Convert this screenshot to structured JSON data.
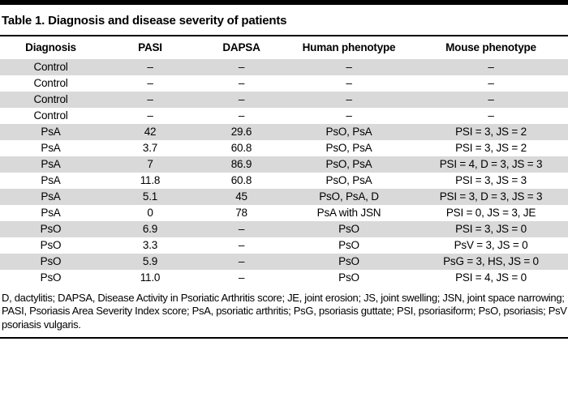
{
  "title": "Table 1. Diagnosis and disease severity of patients",
  "table": {
    "columns": [
      "Diagnosis",
      "PASI",
      "DAPSA",
      "Human phenotype",
      "Mouse phenotype"
    ],
    "rows": [
      [
        "Control",
        "–",
        "–",
        "–",
        "–"
      ],
      [
        "Control",
        "–",
        "–",
        "–",
        "–"
      ],
      [
        "Control",
        "–",
        "–",
        "–",
        "–"
      ],
      [
        "Control",
        "–",
        "–",
        "–",
        "–"
      ],
      [
        "PsA",
        "42",
        "29.6",
        "PsO, PsA",
        "PSI = 3, JS = 2"
      ],
      [
        "PsA",
        "3.7",
        "60.8",
        "PsO, PsA",
        "PSI = 3, JS = 2"
      ],
      [
        "PsA",
        "7",
        "86.9",
        "PsO, PsA",
        "PSI = 4, D = 3, JS = 3"
      ],
      [
        "PsA",
        "11.8",
        "60.8",
        "PsO, PsA",
        "PSI = 3, JS = 3"
      ],
      [
        "PsA",
        "5.1",
        "45",
        "PsO, PsA, D",
        "PSI = 3, D = 3, JS = 3"
      ],
      [
        "PsA",
        "0",
        "78",
        "PsA with JSN",
        "PSI = 0, JS = 3, JE"
      ],
      [
        "PsO",
        "6.9",
        "–",
        "PsO",
        "PSI = 3, JS = 0"
      ],
      [
        "PsO",
        "3.3",
        "–",
        "PsO",
        "PsV = 3, JS = 0"
      ],
      [
        "PsO",
        "5.9",
        "–",
        "PsO",
        "PsG = 3, HS, JS = 0"
      ],
      [
        "PsO",
        "11.0",
        "–",
        "PsO",
        "PSI = 4, JS = 0"
      ]
    ]
  },
  "footnote": "D, dactylitis; DAPSA, Disease Activity in Psoriatic Arthritis score; JE, joint erosion; JS, joint swelling; JSN, joint space narrowing; PASI, Psoriasis Area Severity Index score; PsA, psoriatic arthritis; PsG, psoriasis guttate; PSI, psoriasiform; PsO, psoriasis; PsV psoriasis vulgaris.",
  "colors": {
    "row_shade": "#d9d9d9",
    "rule": "#000000",
    "background": "#ffffff",
    "text": "#000000"
  }
}
